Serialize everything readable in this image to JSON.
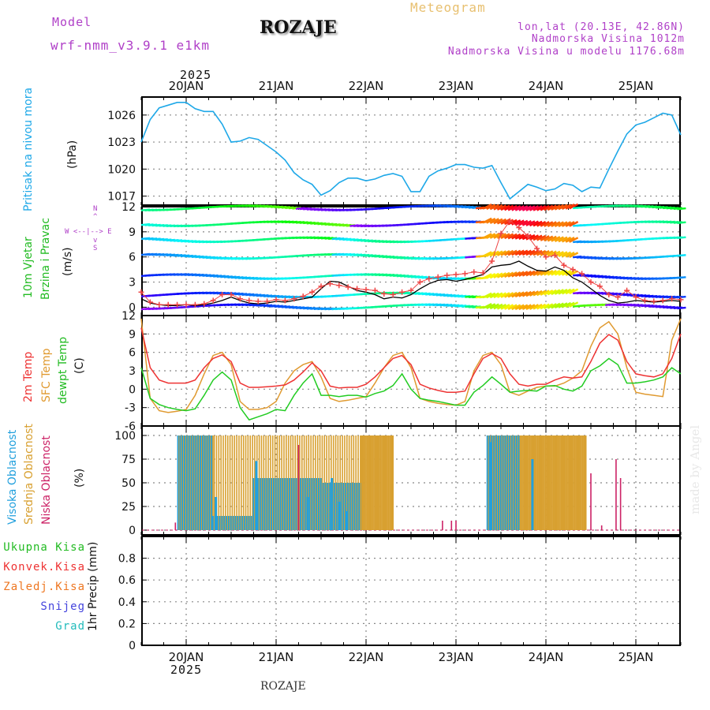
{
  "header": {
    "model_label": "Model",
    "model_name": "wrf-nmm_v3.9.1 e1km",
    "title": "ROZAJE",
    "meteogram": "Meteogram",
    "lonlat": "lon,lat (20.13E, 42.86N)",
    "altitude": "Nadmorska Visina 1012m",
    "model_altitude": "Nadmorska Visina u modelu 1176.68m",
    "watermark": "made by Angel",
    "bottom_title": "ROZAJE",
    "year_top": "2025",
    "year_bottom": "2025"
  },
  "colors": {
    "pressure": "#1ea8e8",
    "wind_label": "#22bb22",
    "wind_compass": "#b040c8",
    "temp2m": "#ee3333",
    "sfc": "#e09a30",
    "dewpt": "#22cc22",
    "cloud_high": "#22a0dd",
    "cloud_mid": "#d8a030",
    "cloud_low": "#cc2266",
    "meteogram": "#e8c070",
    "model": "#b040c8"
  },
  "panel_labels": {
    "pressure": [
      "Pritisak na nivou mora",
      "(hPa)"
    ],
    "wind": [
      "10m Vjetar",
      "Brzina i Pravac",
      "(m/s)"
    ],
    "compass": [
      "N",
      "^",
      "W  <--|-->  E",
      "v",
      "S"
    ],
    "temp": [
      "2m Temp",
      "SFC Temp",
      "dewpt Temp",
      "(C)"
    ],
    "cloud": [
      "Visoka Oblacnost",
      "Srednja Oblacnost",
      "Niska Oblacnost",
      "(%)"
    ],
    "precip_legend": [
      "Ukupna Kisa",
      "Konvek.Kisa",
      "Zaledj.Kisa",
      "Snijeg",
      "Grad"
    ],
    "precip_axis": "1hr Precip (mm)"
  },
  "chart_data": [
    {
      "type": "line",
      "name": "pressure",
      "x_days": [
        "20JAN",
        "21JAN",
        "22JAN",
        "23JAN",
        "24JAN",
        "25JAN"
      ],
      "yticks": [
        1017,
        1020,
        1023,
        1026
      ],
      "ylim": [
        1016,
        1028
      ],
      "x": [
        -0.5,
        -0.4,
        -0.3,
        -0.2,
        -0.1,
        0,
        0.1,
        0.2,
        0.3,
        0.4,
        0.5,
        0.6,
        0.7,
        0.8,
        0.9,
        1,
        1.1,
        1.2,
        1.3,
        1.4,
        1.5,
        1.6,
        1.7,
        1.8,
        1.9,
        2,
        2.1,
        2.2,
        2.3,
        2.4,
        2.5,
        2.6,
        2.7,
        2.8,
        2.9,
        3,
        3.1,
        3.2,
        3.3,
        3.4,
        3.5,
        3.6,
        3.7,
        3.8,
        3.9,
        4,
        4.1,
        4.2,
        4.3,
        4.4,
        4.5,
        4.6,
        4.7,
        4.8,
        4.9,
        5,
        5.1,
        5.2,
        5.3,
        5.4,
        5.5
      ],
      "values": [
        1023.0,
        1025.5,
        1026.8,
        1027.1,
        1027.4,
        1027.4,
        1026.7,
        1026.4,
        1026.4,
        1025.0,
        1023.0,
        1023.1,
        1023.5,
        1023.3,
        1022.6,
        1021.9,
        1021.0,
        1019.6,
        1018.8,
        1018.3,
        1017.1,
        1017.6,
        1018.5,
        1019.0,
        1019.0,
        1018.7,
        1018.9,
        1019.3,
        1019.5,
        1019.2,
        1017.5,
        1017.5,
        1019.2,
        1019.8,
        1020.1,
        1020.5,
        1020.5,
        1020.2,
        1020.1,
        1020.4,
        1018.5,
        1016.7,
        1017.5,
        1018.3,
        1018.0,
        1017.6,
        1017.8,
        1018.4,
        1018.2,
        1017.5,
        1018.0,
        1017.9,
        1020.0,
        1022.0,
        1023.9,
        1024.9,
        1025.2,
        1025.7,
        1026.2,
        1026.0,
        1023.8
      ]
    },
    {
      "type": "line",
      "name": "wind_speed",
      "x_days": [
        "20JAN",
        "21JAN",
        "22JAN",
        "23JAN",
        "24JAN",
        "25JAN"
      ],
      "yticks": [
        0,
        3,
        6,
        9,
        12
      ],
      "ylim": [
        -1,
        12
      ],
      "x": [
        -0.5,
        -0.4,
        -0.3,
        -0.2,
        -0.1,
        0,
        0.1,
        0.2,
        0.3,
        0.4,
        0.5,
        0.6,
        0.7,
        0.8,
        0.9,
        1,
        1.1,
        1.2,
        1.3,
        1.4,
        1.5,
        1.6,
        1.7,
        1.8,
        1.9,
        2,
        2.1,
        2.2,
        2.3,
        2.4,
        2.5,
        2.6,
        2.7,
        2.8,
        2.9,
        3,
        3.1,
        3.2,
        3.3,
        3.4,
        3.5,
        3.6,
        3.7,
        3.8,
        3.9,
        4,
        4.1,
        4.2,
        4.3,
        4.4,
        4.5,
        4.6,
        4.7,
        4.8,
        4.9,
        5,
        5.1,
        5.2,
        5.3,
        5.4,
        5.5
      ],
      "series": [
        {
          "name": "sustained",
          "values": [
            1.0,
            0.5,
            0.3,
            0.2,
            0.2,
            0.3,
            0.2,
            0.3,
            0.5,
            0.8,
            1.2,
            0.8,
            0.5,
            0.4,
            0.5,
            0.7,
            0.6,
            0.8,
            1.0,
            1.2,
            2.2,
            3.1,
            3.0,
            2.5,
            2.0,
            1.8,
            1.5,
            1.0,
            1.2,
            1.1,
            1.5,
            2.2,
            2.8,
            3.2,
            3.3,
            3.1,
            3.3,
            3.6,
            3.9,
            4.8,
            5.0,
            5.1,
            5.5,
            4.9,
            4.4,
            4.3,
            4.8,
            4.4,
            3.5,
            3.0,
            2.2,
            1.4,
            0.8,
            0.5,
            0.6,
            0.8,
            0.7,
            0.6,
            0.7,
            0.8,
            0.7
          ]
        },
        {
          "name": "gust",
          "values": [
            1.8,
            0.6,
            0.3,
            0.3,
            0.3,
            0.3,
            0.3,
            0.4,
            0.8,
            1.5,
            1.5,
            1.0,
            0.8,
            0.7,
            0.7,
            0.9,
            0.8,
            1.0,
            1.3,
            1.8,
            2.5,
            2.8,
            2.6,
            2.4,
            2.2,
            2.1,
            2.0,
            1.6,
            1.5,
            1.8,
            2.0,
            3.0,
            3.4,
            3.6,
            3.8,
            3.9,
            4.0,
            4.2,
            4.1,
            5.5,
            8.8,
            10.3,
            9.5,
            8.5,
            7.0,
            6.0,
            6.2,
            5.0,
            4.5,
            4.0,
            3.0,
            2.5,
            1.5,
            1.2,
            2.0,
            1.2,
            0.8,
            0.7,
            0.8,
            1.0,
            0.9
          ]
        }
      ]
    },
    {
      "type": "line",
      "name": "temperature",
      "x_days": [
        "20JAN",
        "21JAN",
        "22JAN",
        "23JAN",
        "24JAN",
        "25JAN"
      ],
      "yticks": [
        -6,
        -3,
        0,
        3,
        6,
        9,
        12
      ],
      "ylim": [
        -6,
        12
      ],
      "x": [
        -0.5,
        -0.4,
        -0.3,
        -0.2,
        -0.1,
        0,
        0.1,
        0.2,
        0.3,
        0.4,
        0.5,
        0.6,
        0.7,
        0.8,
        0.9,
        1,
        1.1,
        1.2,
        1.3,
        1.4,
        1.5,
        1.6,
        1.7,
        1.8,
        1.9,
        2,
        2.1,
        2.2,
        2.3,
        2.4,
        2.5,
        2.6,
        2.7,
        2.8,
        2.9,
        3,
        3.1,
        3.2,
        3.3,
        3.4,
        3.5,
        3.6,
        3.7,
        3.8,
        3.9,
        4,
        4.1,
        4.2,
        4.3,
        4.4,
        4.5,
        4.6,
        4.7,
        4.8,
        4.9,
        5,
        5.1,
        5.2,
        5.3,
        5.4,
        5.5
      ],
      "series": [
        {
          "name": "2m Temp",
          "values": [
            10.0,
            3.5,
            1.5,
            1.0,
            1.0,
            1.0,
            1.5,
            3.5,
            5.0,
            5.6,
            4.5,
            1.0,
            0.3,
            0.3,
            0.4,
            0.5,
            0.7,
            1.5,
            2.8,
            4.3,
            3.0,
            0.5,
            0.2,
            0.3,
            0.3,
            0.8,
            2.0,
            3.5,
            5.0,
            5.5,
            4.0,
            0.8,
            0.2,
            -0.2,
            -0.5,
            -0.5,
            -0.3,
            2.5,
            5.0,
            5.8,
            5.0,
            2.5,
            0.8,
            0.5,
            0.8,
            0.8,
            1.5,
            2.0,
            1.8,
            2.0,
            4.5,
            7.5,
            8.9,
            8.0,
            4.5,
            2.5,
            2.2,
            2.0,
            2.5,
            5.0,
            9.0
          ]
        },
        {
          "name": "SFC Temp",
          "values": [
            11.5,
            -1.5,
            -3.5,
            -3.8,
            -3.6,
            -3.3,
            -1.0,
            2.5,
            5.5,
            6.0,
            4.0,
            -2.0,
            -3.3,
            -3.3,
            -3.0,
            -2.0,
            1.0,
            3.0,
            4.0,
            4.5,
            2.0,
            -1.5,
            -2.0,
            -1.8,
            -1.5,
            -1.2,
            1.0,
            3.5,
            5.5,
            6.0,
            3.5,
            -1.5,
            -2.0,
            -2.3,
            -2.5,
            -2.6,
            -2.0,
            3.0,
            5.5,
            6.0,
            4.0,
            -0.5,
            -1.0,
            -0.3,
            0.3,
            0.5,
            0.5,
            1.0,
            1.8,
            3.0,
            7.0,
            10.0,
            11.0,
            9.0,
            3.5,
            -0.5,
            -0.8,
            -1.0,
            -1.2,
            8.0,
            11.5
          ]
        },
        {
          "name": "dewpt Temp",
          "values": [
            3.5,
            -1.5,
            -2.5,
            -3.0,
            -3.3,
            -3.5,
            -3.2,
            -1.0,
            1.5,
            2.8,
            1.5,
            -3.0,
            -5.0,
            -4.5,
            -4.0,
            -3.3,
            -3.5,
            -1.0,
            1.0,
            2.5,
            -1.0,
            -1.0,
            -1.2,
            -1.0,
            -1.0,
            -1.3,
            -0.7,
            -0.3,
            0.6,
            2.5,
            0.0,
            -1.5,
            -1.8,
            -2.0,
            -2.3,
            -2.6,
            -2.6,
            -0.5,
            0.6,
            2.0,
            0.8,
            -0.5,
            -0.3,
            -0.2,
            -0.3,
            0.5,
            0.6,
            0.0,
            -0.3,
            0.5,
            3.0,
            3.8,
            5.0,
            4.0,
            1.0,
            1.0,
            1.2,
            1.5,
            2.0,
            3.5,
            2.5
          ]
        }
      ]
    },
    {
      "type": "bar",
      "name": "cloud_cover",
      "x_days": [
        "20JAN",
        "21JAN",
        "22JAN",
        "23JAN",
        "24JAN",
        "25JAN"
      ],
      "yticks": [
        0,
        25,
        50,
        75,
        100
      ],
      "ylim": [
        -5,
        110
      ],
      "blocks": [
        {
          "from": -0.09,
          "to": 0.3,
          "high": 100,
          "mid": 100
        },
        {
          "from": 0.3,
          "to": 0.75,
          "high": 15,
          "mid": 100
        },
        {
          "from": 0.75,
          "to": 1.5,
          "high": 55,
          "mid": 100
        },
        {
          "from": 1.5,
          "to": 1.95,
          "high": 50,
          "mid": 100
        },
        {
          "from": 1.95,
          "to": 2.31,
          "high": 0,
          "mid": 100
        },
        {
          "from": 3.35,
          "to": 3.72,
          "high": 100,
          "mid": 100
        },
        {
          "from": 3.72,
          "to": 4.45,
          "high": 0,
          "mid": 100
        }
      ],
      "high_dips": [
        [
          0.33,
          35
        ],
        [
          0.78,
          73
        ],
        [
          1.35,
          35
        ],
        [
          1.62,
          55
        ],
        [
          1.7,
          30
        ],
        [
          1.78,
          20
        ],
        [
          3.38,
          93
        ],
        [
          3.85,
          75
        ]
      ],
      "low_spikes": [
        [
          -0.12,
          8
        ],
        [
          1.25,
          90
        ],
        [
          2.85,
          10
        ],
        [
          2.95,
          10
        ],
        [
          3.0,
          10
        ],
        [
          4.5,
          60
        ],
        [
          4.62,
          5
        ],
        [
          4.78,
          75
        ],
        [
          4.83,
          55
        ]
      ]
    },
    {
      "type": "bar",
      "name": "precipitation",
      "x_days": [
        "20JAN",
        "21JAN",
        "22JAN",
        "23JAN",
        "24JAN",
        "25JAN"
      ],
      "yticks": [
        0,
        0.2,
        0.4,
        0.6,
        0.8
      ],
      "ylim": [
        0,
        1.0
      ],
      "values": []
    }
  ]
}
